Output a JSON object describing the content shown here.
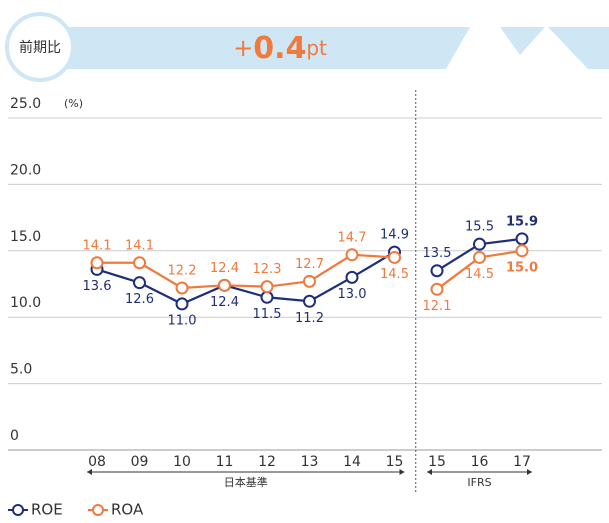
{
  "header": {
    "badge": "前期比",
    "sign": "+",
    "value": "0.4",
    "unit": "pt"
  },
  "chart_data": {
    "type": "line",
    "y_unit": "(%)",
    "groups": [
      {
        "label": "日本基準",
        "categories": [
          "08",
          "09",
          "10",
          "11",
          "12",
          "13",
          "14",
          "15"
        ]
      },
      {
        "label": "IFRS",
        "categories": [
          "15",
          "16",
          "17"
        ]
      }
    ],
    "series": [
      {
        "name": "ROE",
        "color": "#1f2e7a",
        "values": [
          [
            13.6,
            12.6,
            11.0,
            12.4,
            11.5,
            11.2,
            13.0,
            14.9
          ],
          [
            13.5,
            15.5,
            15.9
          ]
        ],
        "value_labels": [
          [
            "13.6",
            "12.6",
            "11.0",
            "12.4",
            "11.5",
            "11.2",
            "13.0",
            "14.9"
          ],
          [
            "13.5",
            "15.5",
            "15.9"
          ]
        ]
      },
      {
        "name": "ROA",
        "color": "#f07a3c",
        "values": [
          [
            14.1,
            14.1,
            12.2,
            12.4,
            12.3,
            12.7,
            14.7,
            14.5
          ],
          [
            12.1,
            14.5,
            15.0
          ]
        ],
        "value_labels": [
          [
            "14.1",
            "14.1",
            "12.2",
            "12.4",
            "12.3",
            "12.7",
            "14.7",
            "14.5"
          ],
          [
            "12.1",
            "14.5",
            "15.0"
          ]
        ]
      }
    ],
    "ylim": [
      0,
      25
    ],
    "yticks": [
      0,
      {
        "value": 5,
        "label": "5.0"
      },
      {
        "value": 10,
        "label": "10.0"
      },
      {
        "value": 15,
        "label": "15.0"
      },
      {
        "value": 20,
        "label": "20.0"
      },
      {
        "value": 25,
        "label": "25.0"
      }
    ],
    "grid": true
  }
}
